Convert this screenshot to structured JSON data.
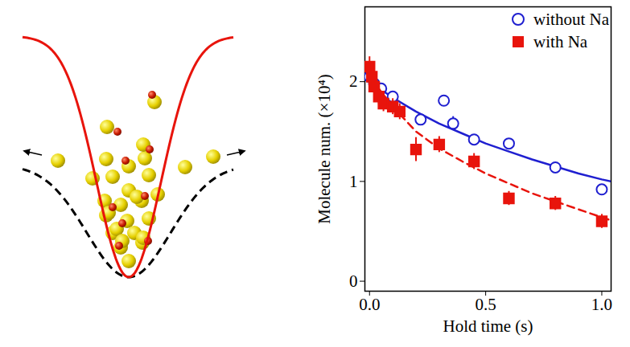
{
  "chart_data": {
    "type": "scatter",
    "x_label": "Hold time (s)",
    "y_label": "Molecule num. (×10⁴)",
    "xlim": [
      -0.02,
      1.04
    ],
    "ylim": [
      -0.1,
      2.75
    ],
    "xticks": [
      {
        "value": 0,
        "label": "0.0"
      },
      {
        "value": 0.5,
        "label": "0.5"
      },
      {
        "value": 1,
        "label": "1.0"
      }
    ],
    "yticks": [
      0,
      1,
      2
    ],
    "grid": false,
    "legend": "upper right",
    "series": [
      {
        "name": "without Na",
        "color": "#1f1fd0",
        "marker": "circle",
        "line_style": "solid",
        "x": [
          0.0,
          0.02,
          0.05,
          0.1,
          0.22,
          0.32,
          0.36,
          0.45,
          0.6,
          0.8,
          1.0
        ],
        "values": [
          2.05,
          1.98,
          1.93,
          1.85,
          1.62,
          1.81,
          1.58,
          1.42,
          1.38,
          1.14,
          0.92
        ],
        "errors": [
          0.05,
          0.05,
          0.05,
          0.05,
          0.05,
          0.05,
          0.07,
          0.05,
          0.05,
          0.05,
          0.05
        ],
        "fit_x": [
          0.0,
          0.1,
          0.2,
          0.3,
          0.4,
          0.5,
          0.6,
          0.7,
          0.8,
          0.9,
          1.0,
          1.04
        ],
        "fit_values": [
          2.0,
          1.84,
          1.7,
          1.58,
          1.48,
          1.38,
          1.3,
          1.22,
          1.15,
          1.08,
          1.02,
          1.0
        ]
      },
      {
        "name": "with Na",
        "color": "#e8140c",
        "marker": "square",
        "line_style": "dashed",
        "x": [
          0.0,
          0.01,
          0.02,
          0.04,
          0.06,
          0.1,
          0.13,
          0.2,
          0.3,
          0.45,
          0.6,
          0.8,
          1.0
        ],
        "values": [
          2.15,
          2.05,
          1.95,
          1.85,
          1.78,
          1.75,
          1.7,
          1.32,
          1.37,
          1.2,
          0.83,
          0.78,
          0.6
        ],
        "errors": [
          0.1,
          0.08,
          0.08,
          0.08,
          0.08,
          0.08,
          0.08,
          0.12,
          0.08,
          0.08,
          0.07,
          0.07,
          0.07
        ],
        "fit_x": [
          0.0,
          0.1,
          0.2,
          0.3,
          0.4,
          0.5,
          0.6,
          0.7,
          0.8,
          0.9,
          1.0,
          1.04
        ],
        "fit_values": [
          2.05,
          1.75,
          1.5,
          1.33,
          1.2,
          1.08,
          0.98,
          0.88,
          0.8,
          0.72,
          0.64,
          0.61
        ]
      }
    ]
  }
}
